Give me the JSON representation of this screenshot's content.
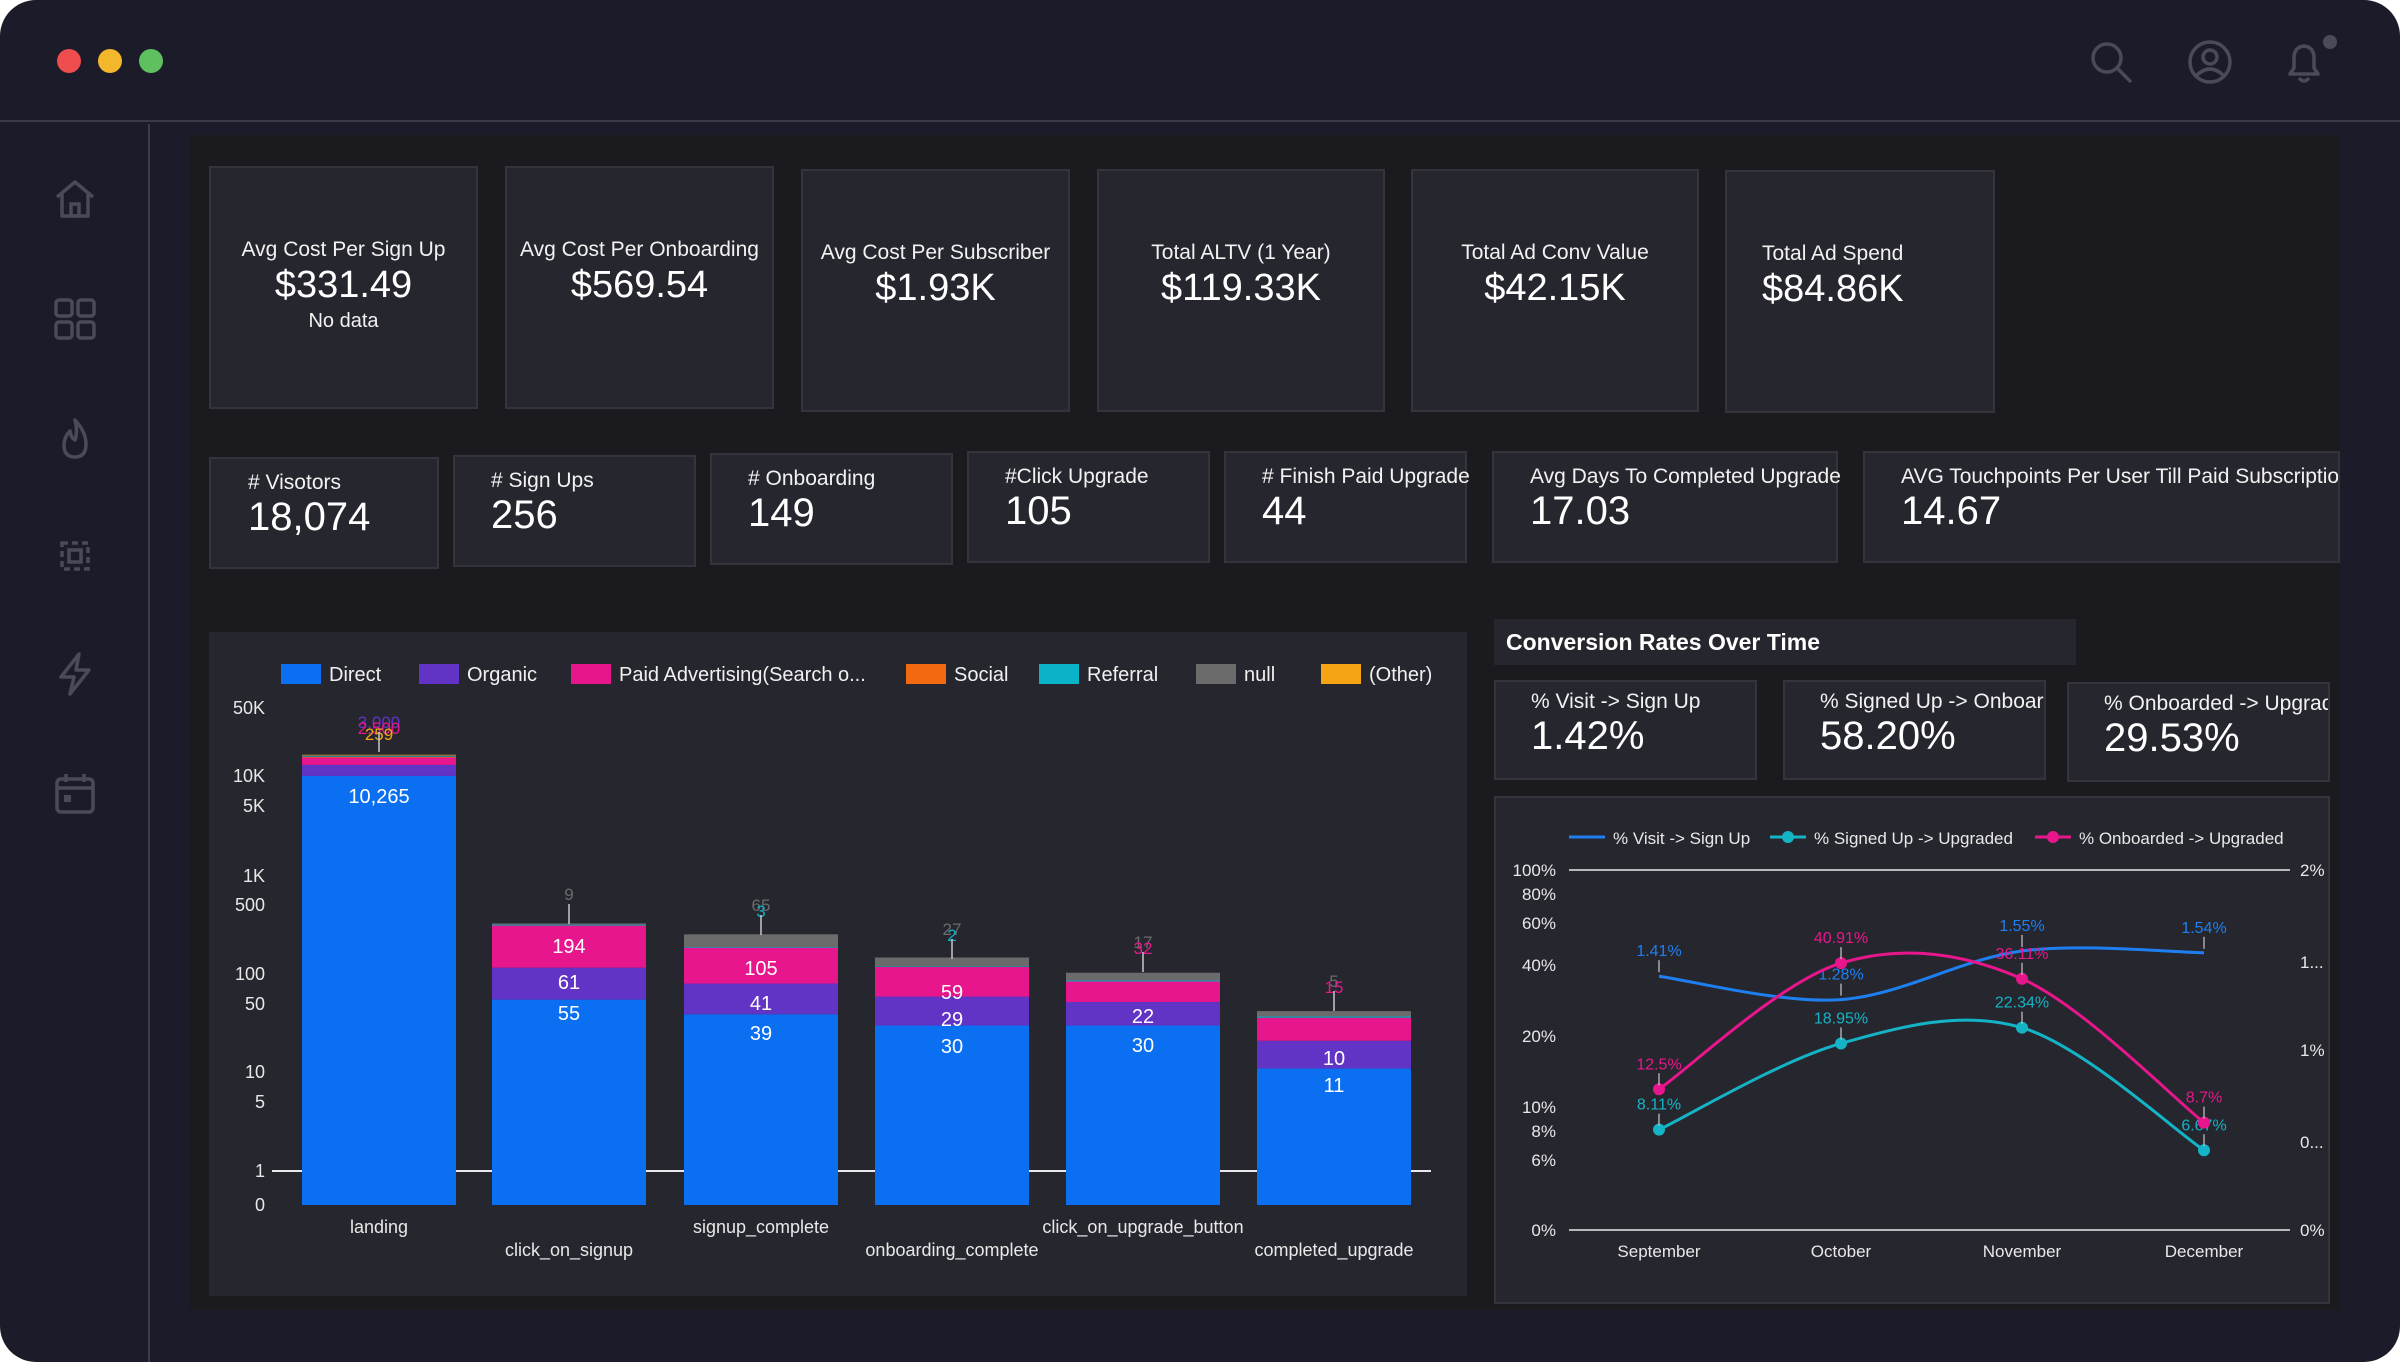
{
  "window": {
    "icons": [
      "search-icon",
      "user-icon",
      "bell-icon"
    ],
    "sidebar_icons": [
      "home-icon",
      "grid-icon",
      "flame-icon",
      "settings-icon",
      "lightning-icon",
      "calendar-icon"
    ]
  },
  "kpis_top": [
    {
      "label": "Avg Cost Per Sign Up",
      "value": "$331.49",
      "sub": "No data"
    },
    {
      "label": "Avg Cost Per Onboarding",
      "value": "$569.54"
    },
    {
      "label": "Avg Cost Per Subscriber",
      "value": "$1.93K"
    },
    {
      "label": "Total ALTV (1 Year)",
      "value": "$119.33K"
    },
    {
      "label": "Total Ad Conv Value",
      "value": "$42.15K"
    },
    {
      "label": "Total Ad Spend",
      "value": "$84.86K"
    }
  ],
  "kpis_mid": [
    {
      "label": "# Visotors",
      "value": "18,074"
    },
    {
      "label": "# Sign Ups",
      "value": "256"
    },
    {
      "label": "# Onboarding",
      "value": "149"
    },
    {
      "label": "#Click Upgrade",
      "value": "105"
    },
    {
      "label": "# Finish Paid Upgrade",
      "value": "44"
    },
    {
      "label": "Avg Days To Completed Upgrade",
      "value": "17.03"
    },
    {
      "label": "AVG Touchpoints Per User Till Paid Subscription",
      "value": "14.67"
    }
  ],
  "funnel": {
    "legend": [
      {
        "name": "Direct",
        "color": "#0a6ff0"
      },
      {
        "name": "Organic",
        "color": "#6234c6"
      },
      {
        "name": "Paid Advertising(Search o...",
        "color": "#e8168c"
      },
      {
        "name": "Social",
        "color": "#f26a0f"
      },
      {
        "name": "Referral",
        "color": "#0ab3c8"
      },
      {
        "name": "null",
        "color": "#6b6b6b"
      },
      {
        "name": "(Other)",
        "color": "#f5a514"
      }
    ]
  },
  "conversion": {
    "title": "Conversion Rates Over Time",
    "cards": [
      {
        "label": "% Visit -> Sign Up",
        "value": "1.42%"
      },
      {
        "label": "% Signed Up -> Onboarded",
        "value": "58.20%"
      },
      {
        "label": "% Onboarded -> Upgraded",
        "value": "29.53%"
      }
    ],
    "legend": [
      {
        "name": "% Visit -> Sign Up",
        "color": "#1e7ff0"
      },
      {
        "name": "% Signed Up -> Upgraded",
        "color": "#15b3c6"
      },
      {
        "name": "% Onboarded -> Upgraded",
        "color": "#e8168c"
      }
    ]
  },
  "chart_data": [
    {
      "type": "bar",
      "stacked": true,
      "y_scale": "log",
      "categories": [
        "landing",
        "click_on_signup",
        "signup_complete",
        "onboarding_complete",
        "click_on_upgrade_button",
        "completed_upgrade"
      ],
      "y_ticks": [
        "50K",
        "10K",
        "5K",
        "1K",
        "500",
        "100",
        "50",
        "10",
        "5",
        "1",
        "0"
      ],
      "series": [
        {
          "name": "Direct",
          "values": [
            10265,
            55,
            39,
            30,
            30,
            11
          ]
        },
        {
          "name": "Organic",
          "values": [
            3000,
            61,
            41,
            29,
            22,
            10
          ]
        },
        {
          "name": "Paid Advertising(Search o...",
          "values": [
            2500,
            194,
            105,
            59,
            32,
            15
          ]
        },
        {
          "name": "Social",
          "values": [
            259,
            0,
            0,
            0,
            0,
            0
          ]
        },
        {
          "name": "Referral",
          "values": [
            250,
            7,
            3,
            2,
            2,
            1
          ]
        },
        {
          "name": "null",
          "values": [
            350,
            9,
            65,
            27,
            17,
            5
          ]
        },
        {
          "name": "(Other)",
          "values": [
            200,
            3,
            0,
            0,
            0,
            0
          ]
        }
      ],
      "data_labels": [
        [
          "10,265",
          "3,000",
          "2,500",
          "259"
        ],
        [
          "55",
          "61",
          "194",
          "9"
        ],
        [
          "39",
          "41",
          "105",
          "65",
          "3"
        ],
        [
          "30",
          "29",
          "59",
          "27",
          "2"
        ],
        [
          "30",
          "22",
          "32",
          "17"
        ],
        [
          "11",
          "10",
          "15",
          "5"
        ]
      ]
    },
    {
      "type": "line",
      "categories": [
        "September",
        "October",
        "November",
        "December"
      ],
      "y_ticks_left": [
        "100%",
        "80%",
        "60%",
        "40%",
        "20%",
        "10%",
        "8%",
        "6%",
        "0%"
      ],
      "y_ticks_right": [
        "2%",
        "1...",
        "1%",
        "0...",
        "0%"
      ],
      "series": [
        {
          "name": "% Visit -> Sign Up",
          "values": [
            1.41,
            1.28,
            1.55,
            1.54
          ],
          "labels": [
            "1.41%",
            "1.28%",
            "1.55%",
            "1.54%"
          ]
        },
        {
          "name": "% Signed Up -> Upgraded",
          "values": [
            8.11,
            18.95,
            22.34,
            6.67
          ],
          "labels": [
            "8.11%",
            "18.95%",
            "22.34%",
            "6.67%"
          ]
        },
        {
          "name": "% Onboarded -> Upgraded",
          "values": [
            12.5,
            40.91,
            36.11,
            8.7
          ],
          "labels": [
            "12.5%",
            "40.91%",
            "36.11%",
            "8.7%"
          ]
        }
      ]
    }
  ]
}
